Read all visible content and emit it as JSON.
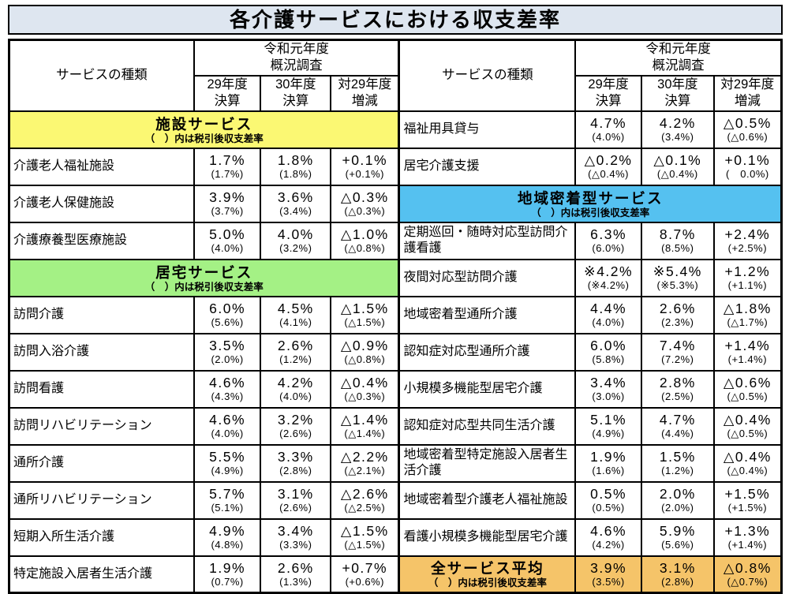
{
  "title": "各介護サービスにおける収支差率",
  "colors": {
    "title_bg": "#dee6f0",
    "section_yellow": "#fbf873",
    "section_green": "#a4f185",
    "section_blue": "#55c1f0",
    "section_orange": "#f5c469"
  },
  "header": {
    "service_type": "サービスの種類",
    "survey": [
      "令和元年度",
      "概況調査"
    ],
    "col_29": [
      "29年度",
      "決算"
    ],
    "col_30": [
      "30年度",
      "決算"
    ],
    "col_diff": [
      "対29年度",
      "増減"
    ]
  },
  "section_note": "（　）内は税引後収支差率",
  "left_table": {
    "rows": [
      {
        "section": "施設サービス",
        "color_key": "section_yellow"
      },
      {
        "label": "介護老人福祉施設",
        "v": [
          "1.7%",
          "(1.7%)",
          "1.8%",
          "(1.8%)",
          "+0.1%",
          "(+0.1%)"
        ]
      },
      {
        "label": "介護老人保健施設",
        "v": [
          "3.9%",
          "(3.7%)",
          "3.6%",
          "(3.4%)",
          "△0.3%",
          "(△0.3%)"
        ]
      },
      {
        "label": "介護療養型医療施設",
        "v": [
          "5.0%",
          "(4.0%)",
          "4.0%",
          "(3.2%)",
          "△1.0%",
          "(△0.8%)"
        ]
      },
      {
        "section": "居宅サービス",
        "color_key": "section_green"
      },
      {
        "label": "訪問介護",
        "v": [
          "6.0%",
          "(5.6%)",
          "4.5%",
          "(4.1%)",
          "△1.5%",
          "(△1.5%)"
        ]
      },
      {
        "label": "訪問入浴介護",
        "v": [
          "3.5%",
          "(2.0%)",
          "2.6%",
          "(1.2%)",
          "△0.9%",
          "(△0.8%)"
        ]
      },
      {
        "label": "訪問看護",
        "v": [
          "4.6%",
          "(4.3%)",
          "4.2%",
          "(4.0%)",
          "△0.4%",
          "(△0.3%)"
        ]
      },
      {
        "label": "訪問リハビリテーション",
        "v": [
          "4.6%",
          "(4.0%)",
          "3.2%",
          "(2.6%)",
          "△1.4%",
          "(△1.4%)"
        ]
      },
      {
        "label": "通所介護",
        "v": [
          "5.5%",
          "(4.9%)",
          "3.3%",
          "(2.8%)",
          "△2.2%",
          "(△2.1%)"
        ]
      },
      {
        "label": "通所リハビリテーション",
        "v": [
          "5.7%",
          "(5.1%)",
          "3.1%",
          "(2.6%)",
          "△2.6%",
          "(△2.5%)"
        ]
      },
      {
        "label": "短期入所生活介護",
        "v": [
          "4.9%",
          "(4.8%)",
          "3.4%",
          "(3.3%)",
          "△1.5%",
          "(△1.5%)"
        ]
      },
      {
        "label": "特定施設入居者生活介護",
        "v": [
          "1.9%",
          "(0.7%)",
          "2.6%",
          "(1.3%)",
          "+0.7%",
          "(+0.6%)"
        ]
      }
    ]
  },
  "right_table": {
    "rows": [
      {
        "label": "福祉用具貸与",
        "v": [
          "4.7%",
          "(4.0%)",
          "4.2%",
          "(3.4%)",
          "△0.5%",
          "(△0.6%)"
        ]
      },
      {
        "label": "居宅介護支援",
        "v": [
          "△0.2%",
          "(△0.4%)",
          "△0.1%",
          "(△0.4%)",
          "+0.1%",
          "(　0.0%)"
        ]
      },
      {
        "section": "地域密着型サービス",
        "color_key": "section_blue"
      },
      {
        "label": "定期巡回・随時対応型訪問介護看護",
        "v": [
          "6.3%",
          "(6.0%)",
          "8.7%",
          "(8.5%)",
          "+2.4%",
          "(+2.5%)"
        ]
      },
      {
        "label": "夜間対応型訪問介護",
        "v": [
          "※4.2%",
          "(※4.2%)",
          "※5.4%",
          "(※5.3%)",
          "+1.2%",
          "(+1.1%)"
        ]
      },
      {
        "label": "地域密着型通所介護",
        "v": [
          "4.4%",
          "(4.0%)",
          "2.6%",
          "(2.3%)",
          "△1.8%",
          "(△1.7%)"
        ]
      },
      {
        "label": "認知症対応型通所介護",
        "v": [
          "6.0%",
          "(5.8%)",
          "7.4%",
          "(7.2%)",
          "+1.4%",
          "(+1.4%)"
        ]
      },
      {
        "label": "小規模多機能型居宅介護",
        "v": [
          "3.4%",
          "(3.0%)",
          "2.8%",
          "(2.5%)",
          "△0.6%",
          "(△0.5%)"
        ]
      },
      {
        "label": "認知症対応型共同生活介護",
        "v": [
          "5.1%",
          "(4.9%)",
          "4.7%",
          "(4.4%)",
          "△0.4%",
          "(△0.5%)"
        ]
      },
      {
        "label": "地域密着型特定施設入居者生活介護",
        "v": [
          "1.9%",
          "(1.6%)",
          "1.5%",
          "(1.2%)",
          "△0.4%",
          "(△0.4%)"
        ]
      },
      {
        "label": "地域密着型介護老人福祉施設",
        "v": [
          "0.5%",
          "(0.5%)",
          "2.0%",
          "(2.0%)",
          "+1.5%",
          "(+1.5%)"
        ]
      },
      {
        "label": "看護小規模多機能型居宅介護",
        "v": [
          "4.6%",
          "(4.2%)",
          "5.9%",
          "(5.6%)",
          "+1.3%",
          "(+1.4%)"
        ]
      },
      {
        "section": "全サービス平均",
        "color_key": "section_orange",
        "v": [
          "3.9%",
          "(3.5%)",
          "3.1%",
          "(2.8%)",
          "△0.8%",
          "(△0.7%)"
        ]
      }
    ]
  }
}
